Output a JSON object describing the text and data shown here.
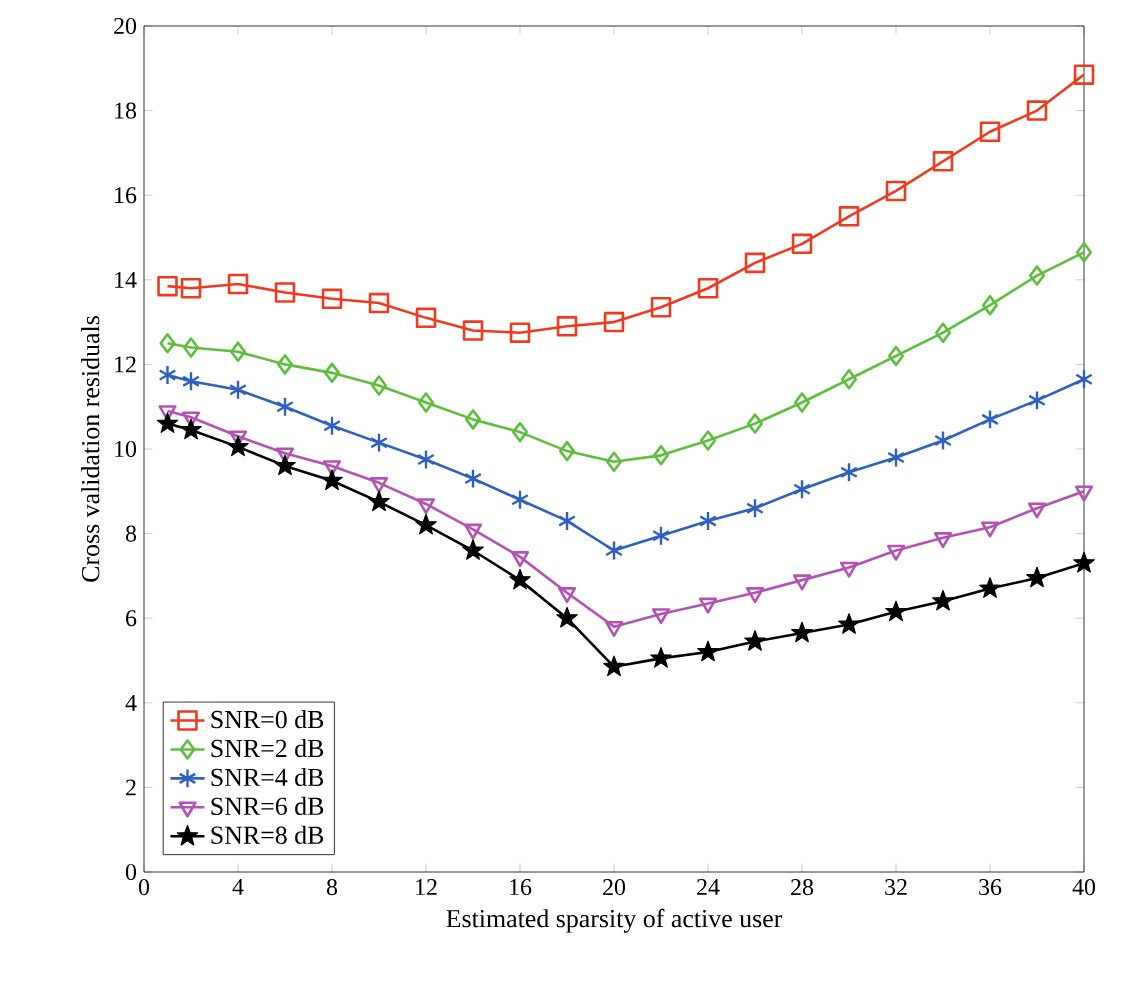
{
  "chart_data": {
    "type": "line",
    "xlabel": "Estimated sparsity of active user",
    "ylabel": "Cross validation residuals",
    "x": [
      1,
      2,
      4,
      6,
      8,
      10,
      12,
      14,
      16,
      18,
      20,
      22,
      24,
      26,
      28,
      30,
      32,
      34,
      36,
      38,
      40
    ],
    "xlim": [
      0,
      40
    ],
    "xticks": [
      0,
      4,
      8,
      12,
      16,
      20,
      24,
      28,
      32,
      36,
      40
    ],
    "ylim": [
      0,
      20
    ],
    "yticks": [
      0,
      2,
      4,
      6,
      8,
      10,
      12,
      14,
      16,
      18,
      20
    ],
    "legend": "bottom left",
    "grid": false,
    "series": [
      {
        "name": "SNR=0 dB",
        "color": "#f03a1e",
        "marker": "square",
        "values": [
          13.85,
          13.8,
          13.9,
          13.7,
          13.55,
          13.45,
          13.1,
          12.8,
          12.75,
          12.9,
          13.0,
          13.35,
          13.8,
          14.4,
          14.85,
          15.5,
          16.1,
          16.8,
          17.5,
          18.0,
          18.85
        ]
      },
      {
        "name": "SNR=2 dB",
        "color": "#5cbf3c",
        "marker": "diamond",
        "values": [
          12.5,
          12.4,
          12.3,
          12.0,
          11.8,
          11.5,
          11.1,
          10.7,
          10.4,
          9.95,
          9.7,
          9.85,
          10.2,
          10.6,
          11.1,
          11.65,
          12.2,
          12.75,
          13.4,
          14.1,
          14.65
        ]
      },
      {
        "name": "SNR=4 dB",
        "color": "#2f5fbf",
        "marker": "cross",
        "values": [
          11.75,
          11.6,
          11.4,
          11.0,
          10.55,
          10.15,
          9.75,
          9.3,
          8.8,
          8.3,
          7.6,
          7.95,
          8.3,
          8.6,
          9.05,
          9.45,
          9.8,
          10.2,
          10.7,
          11.15,
          11.65
        ]
      },
      {
        "name": "SNR=6 dB",
        "color": "#b452b4",
        "marker": "triangle",
        "values": [
          10.9,
          10.75,
          10.3,
          9.9,
          9.6,
          9.2,
          8.7,
          8.1,
          7.45,
          6.6,
          5.8,
          6.1,
          6.35,
          6.6,
          6.9,
          7.2,
          7.6,
          7.9,
          8.15,
          8.6,
          9.0
        ]
      },
      {
        "name": "SNR=8 dB",
        "color": "#000000",
        "marker": "star",
        "values": [
          10.6,
          10.45,
          10.05,
          9.6,
          9.25,
          8.75,
          8.2,
          7.6,
          6.9,
          6.0,
          4.85,
          5.05,
          5.2,
          5.45,
          5.65,
          5.85,
          6.15,
          6.4,
          6.7,
          6.95,
          7.3
        ]
      }
    ]
  }
}
